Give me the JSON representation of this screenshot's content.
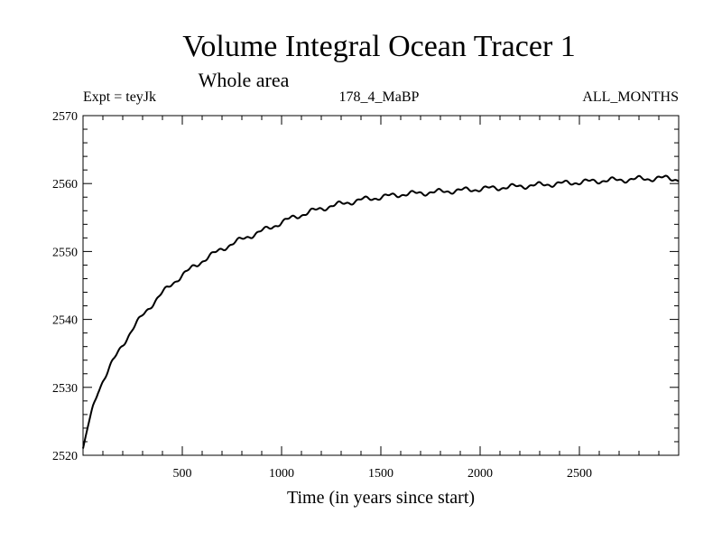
{
  "chart_data": {
    "type": "line",
    "title": "Volume Integral Ocean Tracer 1",
    "subtitle": "Whole area",
    "info_left": "Expt = teyJk",
    "info_center": "178_4_MaBP",
    "info_right": "ALL_MONTHS",
    "xlabel": "Time (in years since start)",
    "ylabel": "",
    "xlim": [
      0,
      3000
    ],
    "ylim": [
      2520,
      2570
    ],
    "x_ticks": [
      500,
      1000,
      1500,
      2000,
      2500
    ],
    "y_ticks": [
      2520,
      2530,
      2540,
      2550,
      2560,
      2570
    ],
    "grid": false,
    "series": [
      {
        "x": [
          0,
          25,
          50,
          75,
          100,
          150,
          200,
          250,
          300,
          350,
          400,
          450,
          500,
          550,
          600,
          650,
          700,
          750,
          800,
          850,
          900,
          950,
          1000,
          1050,
          1100,
          1150,
          1200,
          1250,
          1300,
          1350,
          1400,
          1450,
          1500,
          1550,
          1600,
          1650,
          1700,
          1750,
          1800,
          1850,
          1900,
          1950,
          2000,
          2050,
          2100,
          2150,
          2200,
          2250,
          2300,
          2350,
          2400,
          2450,
          2500,
          2550,
          2600,
          2650,
          2700,
          2750,
          2800,
          2850,
          2900,
          2950,
          3000
        ],
        "y": [
          2521,
          2524.2,
          2527,
          2529.4,
          2531,
          2533.8,
          2536.3,
          2538.6,
          2540.6,
          2542.3,
          2543.9,
          2545.3,
          2546.5,
          2547.6,
          2548.6,
          2549.5,
          2550.4,
          2551.1,
          2551.8,
          2552.4,
          2553,
          2553.6,
          2554.3,
          2554.9,
          2555.4,
          2555.9,
          2556.3,
          2556.7,
          2557,
          2557.3,
          2557.6,
          2557.8,
          2558,
          2558.2,
          2558.4,
          2558.5,
          2558.6,
          2558.7,
          2558.8,
          2558.9,
          2559,
          2559.1,
          2559.2,
          2559.3,
          2559.4,
          2559.5,
          2559.6,
          2559.7,
          2559.8,
          2559.9,
          2560,
          2560.1,
          2560.2,
          2560.3,
          2560.4,
          2560.5,
          2560.5,
          2560.6,
          2560.7,
          2560.7,
          2560.8,
          2560.8,
          2560.6
        ]
      }
    ]
  }
}
